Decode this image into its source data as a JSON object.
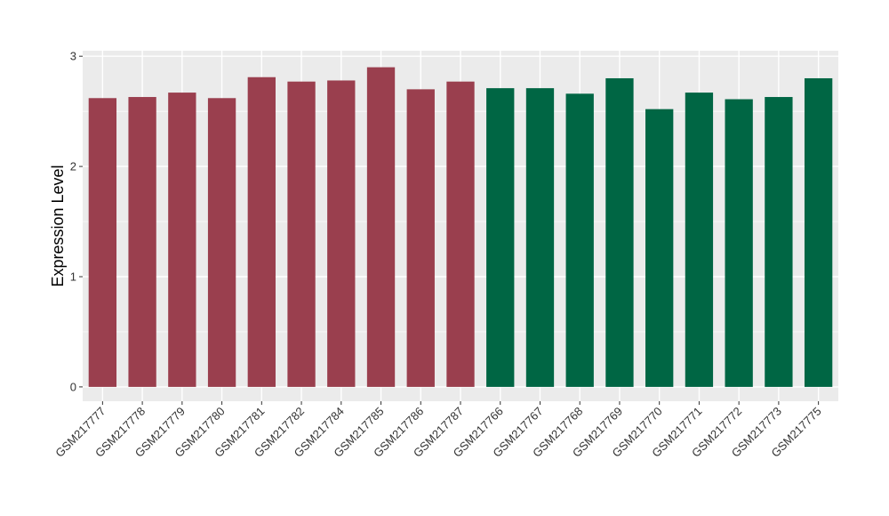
{
  "chart_data": {
    "type": "bar",
    "ylabel": "Expression Level",
    "xlabel": "",
    "ylim": [
      -0.13,
      3.05
    ],
    "yticks": [
      0,
      1,
      2,
      3
    ],
    "grid": true,
    "legend": "none",
    "panel_color": "#EBEBEB",
    "grid_color": "#FFFFFF",
    "groups": [
      {
        "color": "#9A3F4E",
        "categories": [
          "GSM217777",
          "GSM217778",
          "GSM217779",
          "GSM217780",
          "GSM217781",
          "GSM217782",
          "GSM217784",
          "GSM217785",
          "GSM217786",
          "GSM217787"
        ]
      },
      {
        "color": "#006644",
        "categories": [
          "GSM217766",
          "GSM217767",
          "GSM217768",
          "GSM217769",
          "GSM217770",
          "GSM217771",
          "GSM217772",
          "GSM217773",
          "GSM217775"
        ]
      }
    ],
    "categories": [
      "GSM217777",
      "GSM217778",
      "GSM217779",
      "GSM217780",
      "GSM217781",
      "GSM217782",
      "GSM217784",
      "GSM217785",
      "GSM217786",
      "GSM217787",
      "GSM217766",
      "GSM217767",
      "GSM217768",
      "GSM217769",
      "GSM217770",
      "GSM217771",
      "GSM217772",
      "GSM217773",
      "GSM217775"
    ],
    "values": [
      2.62,
      2.63,
      2.67,
      2.62,
      2.81,
      2.77,
      2.78,
      2.9,
      2.7,
      2.77,
      2.71,
      2.71,
      2.66,
      2.8,
      2.52,
      2.67,
      2.61,
      2.63,
      2.8
    ]
  }
}
